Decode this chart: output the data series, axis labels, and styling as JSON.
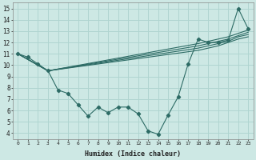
{
  "xlabel": "Humidex (Indice chaleur)",
  "background_color": "#cde8e4",
  "grid_color": "#b0d5d0",
  "line_color": "#2d6b65",
  "xlim": [
    -0.5,
    23.5
  ],
  "ylim": [
    3.5,
    15.5
  ],
  "xticks": [
    0,
    1,
    2,
    3,
    4,
    5,
    6,
    7,
    8,
    9,
    10,
    11,
    12,
    13,
    14,
    15,
    16,
    17,
    18,
    19,
    20,
    21,
    22,
    23
  ],
  "yticks": [
    4,
    5,
    6,
    7,
    8,
    9,
    10,
    11,
    12,
    13,
    14,
    15
  ],
  "line_main_x": [
    0,
    1,
    2,
    3,
    4,
    5,
    6,
    7,
    8,
    9,
    10,
    11,
    12,
    13,
    14,
    15,
    16,
    17,
    18,
    19,
    20,
    21,
    22,
    23
  ],
  "line_main_y": [
    11.0,
    10.7,
    10.1,
    9.5,
    7.8,
    7.5,
    6.5,
    5.5,
    6.3,
    5.8,
    6.3,
    6.3,
    5.7,
    4.2,
    3.9,
    5.6,
    7.2,
    10.1,
    12.3,
    12.0,
    12.0,
    12.2,
    15.0,
    13.2
  ],
  "flat_lines": [
    {
      "x": [
        0,
        3,
        18,
        19,
        20,
        21,
        22,
        23
      ],
      "y": [
        11.0,
        9.5,
        11.3,
        11.5,
        11.7,
        12.0,
        12.3,
        12.5
      ]
    },
    {
      "x": [
        0,
        3,
        18,
        19,
        20,
        21,
        22,
        23
      ],
      "y": [
        11.0,
        9.5,
        11.5,
        11.7,
        11.9,
        12.1,
        12.5,
        12.7
      ]
    },
    {
      "x": [
        0,
        3,
        18,
        19,
        20,
        21,
        22,
        23
      ],
      "y": [
        11.0,
        9.5,
        11.7,
        11.9,
        12.1,
        12.3,
        12.6,
        12.9
      ]
    },
    {
      "x": [
        0,
        3,
        18,
        19,
        20,
        21,
        22,
        23
      ],
      "y": [
        11.0,
        9.5,
        11.9,
        12.1,
        12.3,
        12.5,
        12.8,
        13.1
      ]
    }
  ]
}
